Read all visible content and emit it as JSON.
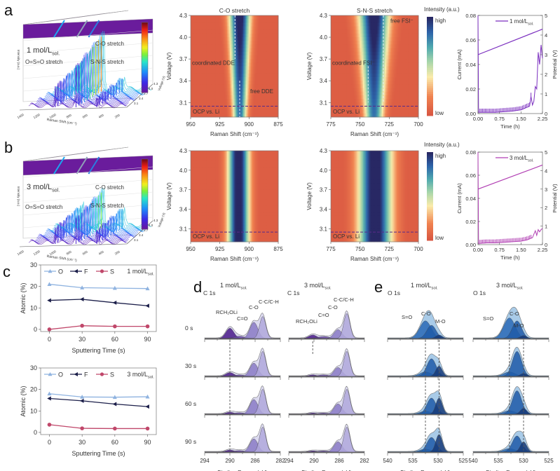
{
  "panels": {
    "a": {
      "letter": "a"
    },
    "b": {
      "letter": "b"
    },
    "c": {
      "letter": "c"
    },
    "d": {
      "letter": "d"
    },
    "e": {
      "letter": "e"
    }
  },
  "chart_data": [
    {
      "id": "a-3d",
      "type": "area",
      "title": "1 mol/Lsol.",
      "concentration_label": "1 mol/L",
      "concentration_sub": "sol.",
      "xlabel": "Raman Shift (cm⁻¹)",
      "ylabel": "Voltage (V)",
      "zlabel": "Intensity (a.u.)",
      "x_ticks": [
        "1400",
        "1200",
        "1000",
        "800",
        "600",
        "400",
        "200"
      ],
      "y_ticks": [
        "3.1",
        "3.4",
        "3.7",
        "4.0",
        "4.3"
      ],
      "annotations": [
        "C-O stretch",
        "O=S=O stretch",
        "S-N-S stretch"
      ],
      "peak_heights": {
        "O=S=O stretch": 0.45,
        "C-O stretch": 0.85,
        "S-N-S stretch": 0.2
      }
    },
    {
      "id": "b-3d",
      "type": "area",
      "title": "3 mol/Lsol.",
      "concentration_label": "3 mol/L",
      "concentration_sub": "sol.",
      "xlabel": "Raman Shift (cm⁻¹)",
      "ylabel": "Voltage (V)",
      "zlabel": "Intensity (a.u.)",
      "x_ticks": [
        "1400",
        "1200",
        "1000",
        "800",
        "600",
        "400",
        "200"
      ],
      "y_ticks": [
        "3.1",
        "3.4",
        "3.7",
        "4.0",
        "4.3"
      ],
      "annotations": [
        "C-O stretch",
        "O=S=O stretch",
        "S-N-S stretch"
      ],
      "peak_heights": {
        "O=S=O stretch": 0.35,
        "C-O stretch": 0.55,
        "S-N-S stretch": 0.3
      }
    },
    {
      "id": "a-heat-co",
      "type": "heatmap",
      "title": "C-O stretch",
      "xlabel": "Raman Shift (cm⁻¹)",
      "ylabel": "Voltage (V)",
      "xlim": [
        950,
        875
      ],
      "ylim": [
        2.9,
        4.3
      ],
      "x_ticks": [
        950,
        925,
        900,
        875
      ],
      "y_ticks": [
        3.1,
        3.4,
        3.7,
        4.0,
        4.3
      ],
      "ocp_voltage": 3.05,
      "ocp_label": "OCP vs. Li",
      "annotations": [
        "coordinated DDE",
        "free DDE"
      ],
      "dashed_lines_x": [
        {
          "x": 912,
          "ymin": 3.7,
          "ymax": 4.3
        },
        {
          "x": 908,
          "ymin": 2.9,
          "ymax": 3.4
        }
      ],
      "band_center": 908,
      "band_width_low": 6,
      "band_width_high": 9
    },
    {
      "id": "a-heat-sns",
      "type": "heatmap",
      "title": "S-N-S stretch",
      "xlabel": "Raman Shift (cm⁻¹)",
      "ylabel": "Voltage (V)",
      "xlim": [
        775,
        700
      ],
      "ylim": [
        2.9,
        4.3
      ],
      "x_ticks": [
        775,
        750,
        725,
        700
      ],
      "y_ticks": [
        3.1,
        3.4,
        3.7,
        4.0,
        4.3
      ],
      "ocp_voltage": 3.05,
      "ocp_label": "OCP vs. Li",
      "annotations": [
        "coordinated FSI⁻",
        "free FSI⁻"
      ],
      "dashed_lines_x": [
        {
          "x": 743,
          "ymin": 3.1,
          "ymax": 3.6
        },
        {
          "x": 730,
          "ymin": 3.1,
          "ymax": 4.3
        }
      ],
      "band_center": 738,
      "band_width_low": 8,
      "band_width_high": 13,
      "colorbar": {
        "title": "Intensity (a.u.)",
        "high": "high",
        "low": "low"
      }
    },
    {
      "id": "b-heat-co",
      "type": "heatmap",
      "title": "",
      "xlabel": "Raman Shift (cm⁻¹)",
      "ylabel": "Voltage (V)",
      "xlim": [
        950,
        875
      ],
      "ylim": [
        2.9,
        4.3
      ],
      "x_ticks": [
        950,
        925,
        900,
        875
      ],
      "y_ticks": [
        3.1,
        3.4,
        3.7,
        4.0,
        4.3
      ],
      "ocp_voltage": 3.05,
      "ocp_label": "OCP vs. Li",
      "annotations": [],
      "dashed_lines_x": [],
      "band_center": 909,
      "band_width_low": 9,
      "band_width_high": 9
    },
    {
      "id": "b-heat-sns",
      "type": "heatmap",
      "title": "",
      "xlabel": "Raman Shift (cm⁻¹)",
      "ylabel": "Voltage (V)",
      "xlim": [
        775,
        700
      ],
      "ylim": [
        2.9,
        4.3
      ],
      "x_ticks": [
        775,
        750,
        725,
        700
      ],
      "y_ticks": [
        3.1,
        3.4,
        3.7,
        4.0,
        4.3
      ],
      "ocp_voltage": 3.05,
      "ocp_label": "OCP vs. Li",
      "annotations": [],
      "dashed_lines_x": [],
      "band_center": 737,
      "band_width_low": 14,
      "band_width_high": 14,
      "colorbar": {
        "title": "Intensity (a.u.)",
        "high": "high",
        "low": "low"
      }
    },
    {
      "id": "a-current",
      "type": "line",
      "legend": "1 mol/L",
      "legend_sub": "sol.",
      "color": "#7b2fbf",
      "xlabel": "Time (h)",
      "ylabel": "Current (mA)",
      "y2label": "Potential (V)",
      "xlim": [
        0,
        2.25
      ],
      "ylim": [
        0,
        0.08
      ],
      "y2lim": [
        0,
        5
      ],
      "x_ticks": [
        0.0,
        0.75,
        1.5,
        2.25
      ],
      "y_ticks": [
        0.0,
        0.02,
        0.04,
        0.06,
        0.08
      ],
      "y2_ticks": [
        0,
        1,
        2,
        3,
        4,
        5
      ],
      "potential": {
        "x": [
          0,
          2.25
        ],
        "y": [
          3.0,
          4.3
        ]
      },
      "current": {
        "x": [
          0,
          0.02,
          0.3,
          0.6,
          0.9,
          1.2,
          1.5,
          1.7,
          1.8,
          1.85,
          1.9,
          1.95,
          2.0,
          2.05,
          2.1,
          2.15,
          2.2,
          2.25
        ],
        "y": [
          0.08,
          0.001,
          0.001,
          0.001,
          0.0015,
          0.002,
          0.003,
          0.005,
          0.006,
          0.014,
          0.007,
          0.01,
          0.022,
          0.02,
          0.05,
          0.04,
          0.056,
          0.045
        ]
      }
    },
    {
      "id": "b-current",
      "type": "line",
      "legend": "3 mol/L",
      "legend_sub": "sol.",
      "color": "#b13fb3",
      "xlabel": "Time (h)",
      "ylabel": "Current (mA)",
      "y2label": "Potential (V)",
      "xlim": [
        0,
        2.25
      ],
      "ylim": [
        0,
        0.08
      ],
      "y2lim": [
        0,
        5
      ],
      "x_ticks": [
        0.0,
        0.75,
        1.5,
        2.25
      ],
      "y_ticks": [
        0.0,
        0.02,
        0.04,
        0.06,
        0.08
      ],
      "y2_ticks": [
        0,
        1,
        2,
        3,
        4,
        5
      ],
      "potential": {
        "x": [
          0,
          2.25
        ],
        "y": [
          3.0,
          4.3
        ]
      },
      "current": {
        "x": [
          0,
          0.02,
          0.3,
          0.6,
          0.9,
          1.2,
          1.5,
          1.7,
          1.8,
          1.9,
          2.0,
          2.05,
          2.1,
          2.15,
          2.2,
          2.25
        ],
        "y": [
          0.08,
          0.001,
          0.0015,
          0.0015,
          0.002,
          0.0025,
          0.003,
          0.004,
          0.005,
          0.006,
          0.012,
          0.008,
          0.013,
          0.011,
          0.013,
          0.014
        ]
      }
    },
    {
      "id": "c-1M",
      "type": "line",
      "title": "1 mol/L",
      "title_sub": "sol.",
      "xlabel": "Sputtering Time (s)",
      "ylabel": "Atomic (%)",
      "xlim": [
        -8,
        98
      ],
      "ylim": [
        -1,
        30
      ],
      "x_ticks": [
        0,
        30,
        60,
        90
      ],
      "y_ticks": [
        0,
        10,
        20,
        30
      ],
      "x": [
        0,
        30,
        60,
        90
      ],
      "series": [
        {
          "name": "O",
          "values": [
            21,
            19.4,
            19.2,
            19
          ],
          "color": "#8fb3e0",
          "marker": "triangle-up"
        },
        {
          "name": "F",
          "values": [
            13.5,
            14,
            12.4,
            11
          ],
          "color": "#1c1f4a",
          "marker": "triangle-left"
        },
        {
          "name": "S",
          "values": [
            0,
            1.7,
            1.4,
            1.4
          ],
          "color": "#c0476a",
          "marker": "circle"
        }
      ]
    },
    {
      "id": "c-3M",
      "type": "line",
      "title": "3 mol/L",
      "title_sub": "sol.",
      "xlabel": "Sputtering Time (s)",
      "ylabel": "Atomic (%)",
      "xlim": [
        -8,
        98
      ],
      "ylim": [
        -1,
        30
      ],
      "x_ticks": [
        0,
        30,
        60,
        90
      ],
      "y_ticks": [
        0,
        10,
        20,
        30
      ],
      "x": [
        0,
        30,
        60,
        90
      ],
      "series": [
        {
          "name": "O",
          "values": [
            18,
            16.5,
            16.4,
            16.6
          ],
          "color": "#8fb3e0",
          "marker": "triangle-up"
        },
        {
          "name": "F",
          "values": [
            15.8,
            14.7,
            13.2,
            12
          ],
          "color": "#1c1f4a",
          "marker": "triangle-left"
        },
        {
          "name": "S",
          "values": [
            3.6,
            1.9,
            1.8,
            1.8
          ],
          "color": "#c0476a",
          "marker": "circle"
        }
      ]
    },
    {
      "id": "d-1M",
      "type": "area",
      "title": "1 mol/L",
      "title_sub": "sol.",
      "region": "C 1s",
      "xlabel": "Binding Energy (eV)",
      "xlim": [
        294,
        282
      ],
      "x_ticks": [
        294,
        290,
        286,
        282
      ],
      "row_labels": [
        "0 s",
        "30 s",
        "60 s",
        "90 s"
      ],
      "peak_labels": [
        "RCH₂OLi",
        "C=O",
        "C-O",
        "C-C/C-H"
      ],
      "peak_positions": {
        "RCH2OLi": 290.0,
        "C=O": 288.5,
        "C-O": 286.2,
        "C-C/C-H": 284.8
      },
      "dashed_line_x": 290.0,
      "rows": [
        {
          "RCH2OLi": 0.35,
          "C=O": 0.08,
          "C-O": 0.55,
          "C-C/C-H": 0.75
        },
        {
          "RCH2OLi": 0.13,
          "C=O": 0.05,
          "C-O": 0.45,
          "C-C/C-H": 0.85
        },
        {
          "RCH2OLi": 0.07,
          "C=O": 0.05,
          "C-O": 0.5,
          "C-C/C-H": 0.85
        },
        {
          "RCH2OLi": 0.07,
          "C=O": 0.05,
          "C-O": 0.45,
          "C-C/C-H": 0.85
        }
      ]
    },
    {
      "id": "d-3M",
      "type": "area",
      "title": "3 mol/L",
      "title_sub": "sol.",
      "region": "C 1s",
      "xlabel": "Binding Energy (eV)",
      "xlim": [
        294,
        282
      ],
      "x_ticks": [
        294,
        290,
        286,
        282
      ],
      "row_labels": [
        "0 s",
        "30 s",
        "60 s",
        "90 s"
      ],
      "peak_labels": [
        "RCH₂OLi",
        "C=O",
        "C-O",
        "C-C/C-H"
      ],
      "peak_positions": {
        "RCH2OLi": 290.2,
        "C=O": 288.5,
        "C-O": 286.2,
        "C-C/C-H": 284.8
      },
      "dashed_line_x": 290.2,
      "rows": [
        {
          "RCH2OLi": 0.12,
          "C=O": 0.07,
          "C-O": 0.3,
          "C-C/C-H": 0.85
        },
        {
          "RCH2OLi": 0.05,
          "C=O": 0.05,
          "C-O": 0.3,
          "C-C/C-H": 0.85
        },
        {
          "RCH2OLi": 0.04,
          "C=O": 0.04,
          "C-O": 0.35,
          "C-C/C-H": 0.85
        },
        {
          "RCH2OLi": 0.04,
          "C=O": 0.04,
          "C-O": 0.35,
          "C-C/C-H": 0.85
        }
      ]
    },
    {
      "id": "e-1M",
      "type": "area",
      "title": "1 mol/L",
      "title_sub": "sol.",
      "region": "O 1s",
      "xlabel": "Binding Energy (eV)",
      "xlim": [
        540,
        525
      ],
      "x_ticks": [
        540,
        535,
        530,
        525
      ],
      "peak_labels": [
        "S=O",
        "C-O",
        "M-O"
      ],
      "peak_positions": {
        "S=O": 532.5,
        "C-O": 531.3,
        "M-O": 529.8
      },
      "dashed_lines_x": [
        532.5,
        529.8
      ],
      "rows": [
        {
          "S=O": 0.6,
          "C-O": 0.45,
          "M-O": 0.12
        },
        {
          "S=O": 0.15,
          "C-O": 0.6,
          "M-O": 0.35
        },
        {
          "S=O": 0.1,
          "C-O": 0.55,
          "M-O": 0.55
        },
        {
          "S=O": 0.1,
          "C-O": 0.5,
          "M-O": 0.6
        }
      ]
    },
    {
      "id": "e-3M",
      "type": "area",
      "title": "3 mol/L",
      "title_sub": "sol.",
      "region": "O 1s",
      "xlabel": "Binding Energy (eV)",
      "xlim": [
        540,
        525
      ],
      "x_ticks": [
        540,
        535,
        530,
        525
      ],
      "peak_labels": [
        "S=O",
        "C-O",
        "M-O"
      ],
      "peak_positions": {
        "S=O": 532.8,
        "C-O": 531.3,
        "M-O": 530.0
      },
      "dashed_lines_x": [
        532.8,
        530.0
      ],
      "rows": [
        {
          "S=O": 0.7,
          "C-O": 0.6,
          "M-O": 0.1
        },
        {
          "S=O": 0.15,
          "C-O": 0.85,
          "M-O": 0.1
        },
        {
          "S=O": 0.12,
          "C-O": 0.8,
          "M-O": 0.2
        },
        {
          "S=O": 0.12,
          "C-O": 0.55,
          "M-O": 0.35
        }
      ]
    }
  ]
}
